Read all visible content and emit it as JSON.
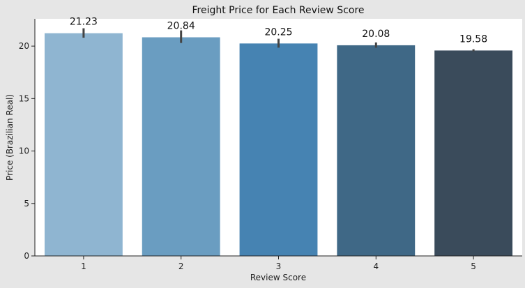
{
  "chart_data": {
    "type": "bar",
    "title": "Freight Price for Each Review Score",
    "xlabel": "Review Score",
    "ylabel": "Price (Brazilian Real)",
    "categories": [
      "1",
      "2",
      "3",
      "4",
      "5"
    ],
    "values": [
      21.23,
      20.84,
      20.25,
      20.08,
      19.58
    ],
    "data_labels": [
      "21.23",
      "20.84",
      "20.25",
      "20.08",
      "19.58"
    ],
    "error_bars": [
      [
        20.8,
        21.7
      ],
      [
        20.3,
        21.5
      ],
      [
        19.85,
        20.7
      ],
      [
        19.85,
        20.35
      ],
      [
        19.5,
        19.7
      ]
    ],
    "ylim": [
      0,
      22.6
    ],
    "yticks": [
      0,
      5,
      10,
      15,
      20
    ],
    "grid": false,
    "colors": [
      "#8fb5d1",
      "#6a9dc1",
      "#4683b2",
      "#3f6886",
      "#3a4b5b"
    ],
    "errorbar_color": "#444444"
  }
}
